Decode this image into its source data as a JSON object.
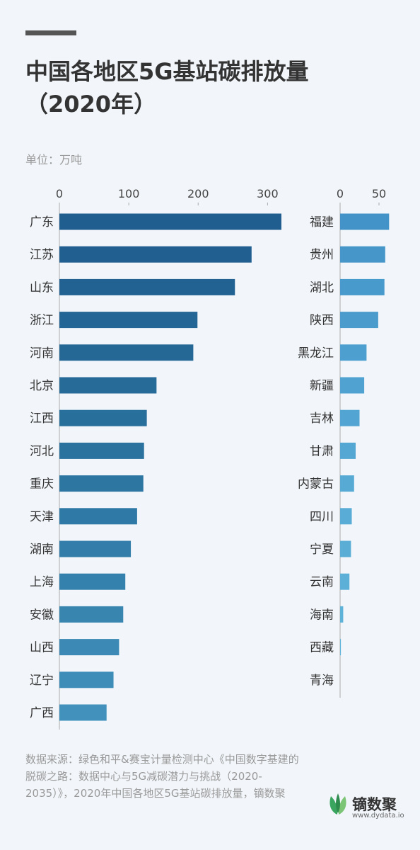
{
  "header": {
    "title_line1": "中国各地区5G基站碳排放量",
    "title_line2": "（2020年）",
    "unit": "单位：万吨"
  },
  "footer": {
    "source": "数据来源：绿色和平&赛宝计量检测中心《中国数字基建的脱碳之路：数据中心与5G减碳潜力与挑战（2020-2035）》，2020年中国各地区5G基站碳排放量，镝数聚",
    "logo_text": "镝数聚",
    "logo_url": "www.dydata.io"
  },
  "chart_data": [
    {
      "type": "bar",
      "orientation": "horizontal",
      "xlim": [
        0,
        320
      ],
      "ticks": [
        0,
        100,
        200,
        300
      ],
      "categories": [
        "广东",
        "江苏",
        "山东",
        "浙江",
        "河南",
        "北京",
        "江西",
        "河北",
        "重庆",
        "天津",
        "湖南",
        "上海",
        "安徽",
        "山西",
        "辽宁",
        "广西"
      ],
      "values": [
        320,
        277,
        253,
        199,
        193,
        140,
        126,
        122,
        121,
        112,
        103,
        95,
        92,
        86,
        78,
        68
      ],
      "colors": [
        "#1f5e8e",
        "#215f90",
        "#226292",
        "#236594",
        "#256896",
        "#276b99",
        "#296f9c",
        "#2b729f",
        "#2d76a2",
        "#2f79a6",
        "#327da9",
        "#3581ad",
        "#3885b0",
        "#3b89b4",
        "#3e8db8",
        "#4191bc"
      ]
    },
    {
      "type": "bar",
      "orientation": "horizontal",
      "xlim": [
        0,
        65
      ],
      "ticks": [
        0,
        50
      ],
      "categories": [
        "福建",
        "贵州",
        "湖北",
        "陕西",
        "黑龙江",
        "新疆",
        "吉林",
        "甘肃",
        "内蒙古",
        "四川",
        "宁夏",
        "云南",
        "海南",
        "西藏",
        "青海"
      ],
      "values": [
        63,
        58,
        57,
        49,
        34,
        31,
        25,
        20,
        18,
        15,
        14,
        12,
        4,
        1,
        0
      ],
      "colors": [
        "#4493c8",
        "#4696ca",
        "#4899cc",
        "#4b9ccd",
        "#4d9fcf",
        "#50a2d0",
        "#52a5d2",
        "#54a7d3",
        "#56aad4",
        "#58acd5",
        "#5aaed6",
        "#5cb0d7",
        "#5eb2d8",
        "#60b4d9",
        "#62b6da"
      ]
    }
  ]
}
